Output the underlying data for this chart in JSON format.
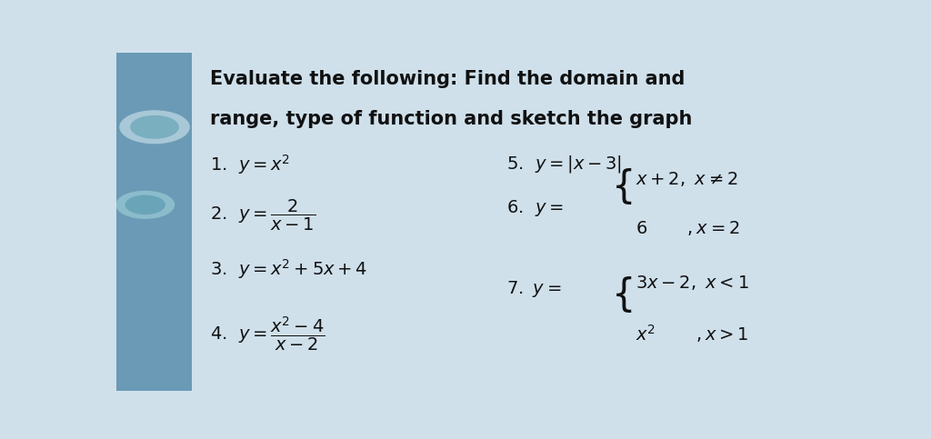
{
  "title_line1": "Evaluate the following: Find the domain and",
  "title_line2": "range, type of function and sketch the graph",
  "background_color": "#cfe0eb",
  "left_panel_color": "#6a9ab5",
  "text_color": "#111111",
  "title_fontsize": 15,
  "body_fontsize": 14
}
